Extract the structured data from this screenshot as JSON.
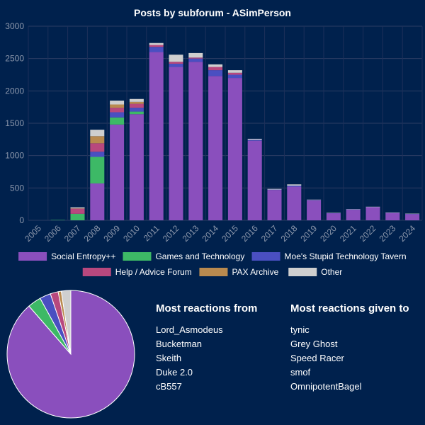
{
  "chart_data": [
    {
      "type": "bar",
      "stacked": true,
      "title": "Posts by subforum - ASimPerson",
      "categories": [
        "2005",
        "2006",
        "2007",
        "2008",
        "2009",
        "2010",
        "2011",
        "2012",
        "2013",
        "2014",
        "2015",
        "2016",
        "2017",
        "2018",
        "2019",
        "2020",
        "2021",
        "2022",
        "2023",
        "2024"
      ],
      "ylim": [
        0,
        3000
      ],
      "yticks": [
        0,
        500,
        1000,
        1500,
        2000,
        2500,
        3000
      ],
      "grid": true,
      "legend": "bottom",
      "series": [
        {
          "name": "Social Entropy++",
          "color": "#8a4fbd",
          "values": [
            0,
            0,
            0,
            570,
            1480,
            1640,
            2600,
            2370,
            2450,
            2230,
            2200,
            1230,
            470,
            520,
            310,
            110,
            165,
            205,
            115,
            95
          ]
        },
        {
          "name": "Games and Technology",
          "color": "#3db966",
          "values": [
            0,
            5,
            100,
            410,
            110,
            40,
            0,
            0,
            0,
            0,
            0,
            0,
            0,
            0,
            0,
            0,
            0,
            0,
            0,
            0
          ]
        },
        {
          "name": "Moe's Stupid Technology Tavern",
          "color": "#4a4fc1",
          "values": [
            0,
            0,
            0,
            80,
            80,
            60,
            80,
            50,
            50,
            90,
            50,
            15,
            5,
            15,
            5,
            3,
            3,
            3,
            3,
            3
          ]
        },
        {
          "name": "Help / Advice Forum",
          "color": "#b8487e",
          "values": [
            0,
            0,
            80,
            130,
            70,
            60,
            30,
            30,
            15,
            50,
            30,
            0,
            0,
            0,
            0,
            0,
            0,
            0,
            0,
            0
          ]
        },
        {
          "name": "PAX  Archive",
          "color": "#b98a4f",
          "values": [
            0,
            0,
            5,
            110,
            50,
            30,
            0,
            0,
            0,
            0,
            0,
            0,
            0,
            0,
            0,
            0,
            0,
            0,
            0,
            0
          ]
        },
        {
          "name": "Other",
          "color": "#cfcfcf",
          "values": [
            0,
            0,
            15,
            100,
            60,
            45,
            30,
            110,
            70,
            40,
            40,
            15,
            10,
            20,
            5,
            2,
            5,
            2,
            2,
            5
          ]
        }
      ]
    },
    {
      "type": "pie",
      "labels": [
        "Social Entropy++",
        "Games and Technology",
        "Moe's Stupid Technology Tavern",
        "Help / Advice Forum",
        "PAX  Archive",
        "Other"
      ],
      "values": [
        88.6,
        3.4,
        2.8,
        2.0,
        0.8,
        2.4
      ],
      "colors": [
        "#8a4fbd",
        "#3db966",
        "#4a4fc1",
        "#b8487e",
        "#b98a4f",
        "#cfcfcf"
      ]
    }
  ],
  "reactions": {
    "from_title": "Most reactions from",
    "from": [
      "Lord_Asmodeus",
      "Bucketman",
      "Skeith",
      "Duke 2.0",
      "cB557"
    ],
    "given_title": "Most reactions given to",
    "given": [
      "tynic",
      "Grey Ghost",
      "Speed Racer",
      "smof",
      "OmnipotentBagel"
    ]
  }
}
